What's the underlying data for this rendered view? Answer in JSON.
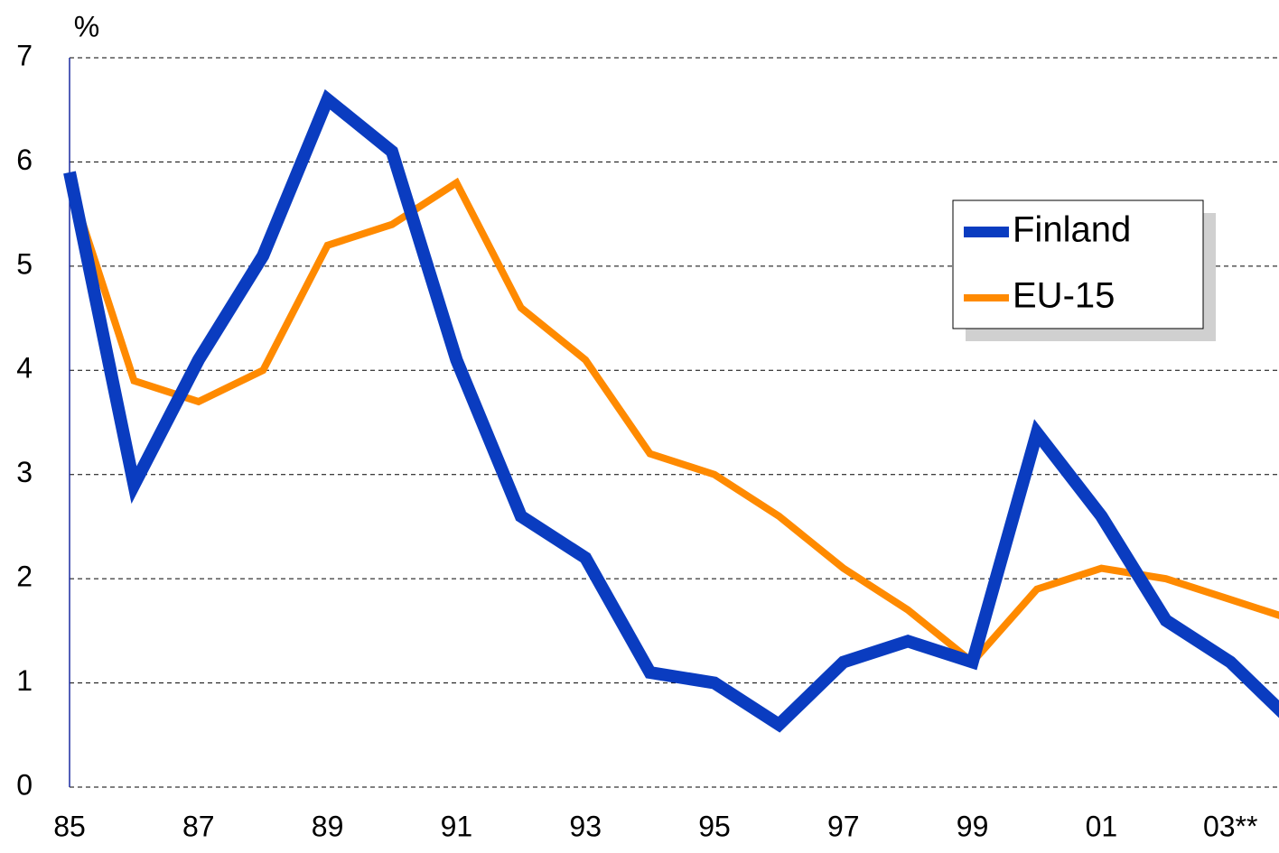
{
  "chart_data": {
    "type": "line",
    "y_label": "%",
    "categories": [
      "85",
      null,
      "87",
      null,
      "89",
      null,
      "91",
      null,
      "93",
      null,
      "95",
      null,
      "97",
      null,
      "99",
      null,
      "01",
      null,
      "03**",
      null
    ],
    "series": [
      {
        "name": "Finland",
        "color": "#0a3cc0",
        "values": [
          5.9,
          2.9,
          4.1,
          5.1,
          6.6,
          6.1,
          4.1,
          2.6,
          2.2,
          1.1,
          1.0,
          0.6,
          1.2,
          1.4,
          1.2,
          3.4,
          2.6,
          1.6,
          1.2,
          0.6
        ]
      },
      {
        "name": "EU-15",
        "color": "#ff8a00",
        "values": [
          5.8,
          3.9,
          3.7,
          4.0,
          5.2,
          5.4,
          5.8,
          4.6,
          4.1,
          3.2,
          3.0,
          2.6,
          2.1,
          1.7,
          1.2,
          1.9,
          2.1,
          2.0,
          1.8,
          1.6
        ]
      }
    ],
    "ylim": [
      0,
      7
    ],
    "yticks": [
      0,
      1,
      2,
      3,
      4,
      5,
      6,
      7
    ],
    "grid": true,
    "legend": "upper right"
  }
}
